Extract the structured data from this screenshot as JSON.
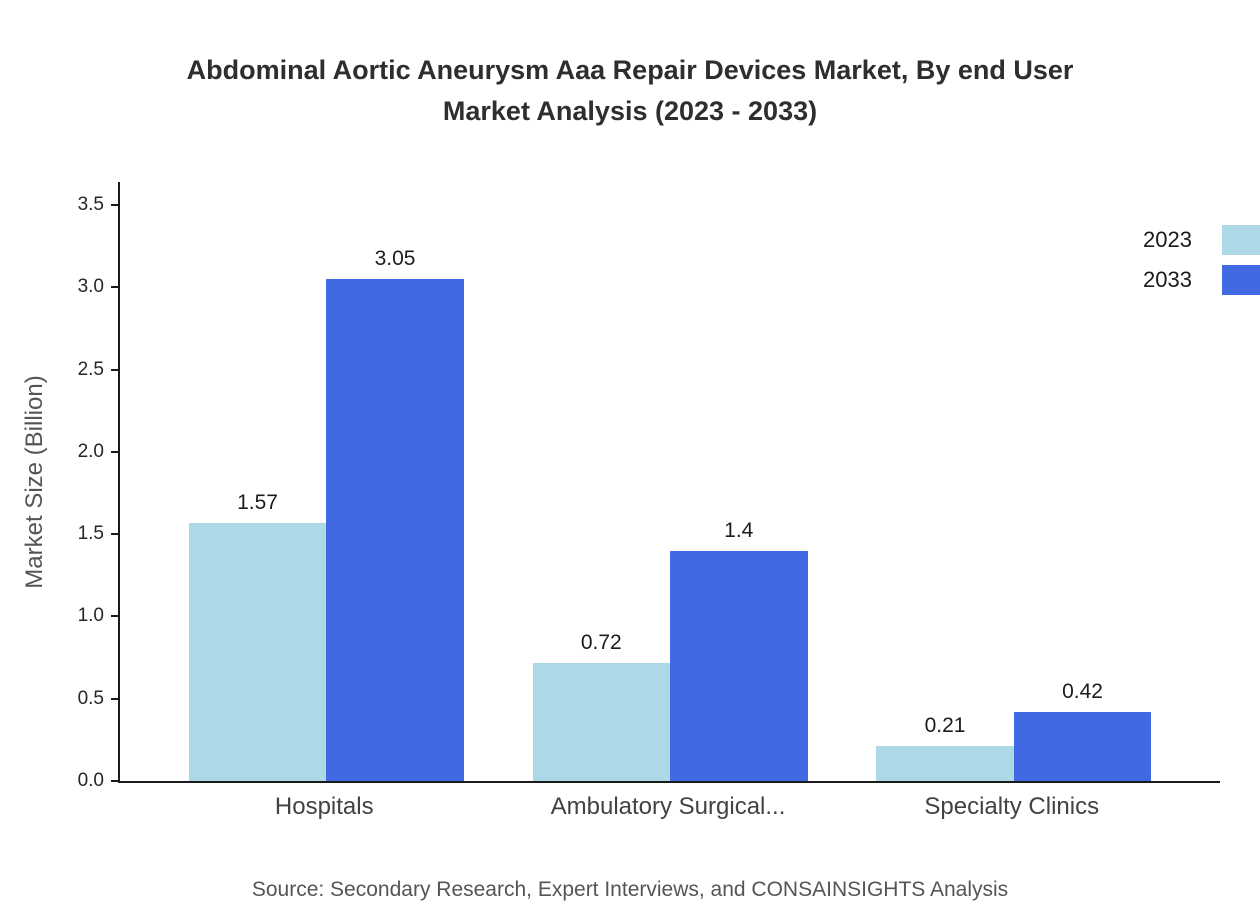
{
  "title_lines": [
    "Abdominal Aortic Aneurysm Aaa Repair Devices Market, By end User",
    "Market Analysis (2023 - 2033)"
  ],
  "source_note": "Source: Secondary Research, Expert Interviews, and CONSAINSIGHTS Analysis",
  "chart_data": {
    "type": "bar",
    "title": "Abdominal Aortic Aneurysm Aaa Repair Devices Market, By end User Market Analysis (2023 - 2033)",
    "categories": [
      "Hospitals",
      "Ambulatory Surgical...",
      "Specialty Clinics"
    ],
    "series": [
      {
        "name": "2023",
        "color": "#ADD8E6",
        "values": [
          1.57,
          0.72,
          0.21
        ]
      },
      {
        "name": "2033",
        "color": "#4169E1",
        "values": [
          3.05,
          1.4,
          0.42
        ]
      }
    ],
    "xlabel": "",
    "ylabel": "Market Size (Billion)",
    "ylim": [
      0,
      3.5
    ],
    "yticks": [
      0,
      0.5,
      1,
      1.5,
      2,
      2.5,
      3,
      3.5
    ],
    "grid": false,
    "legend_position": "top-right",
    "source": "Source: Secondary Research, Expert Interviews, and CONSAINSIGHTS Analysis"
  }
}
